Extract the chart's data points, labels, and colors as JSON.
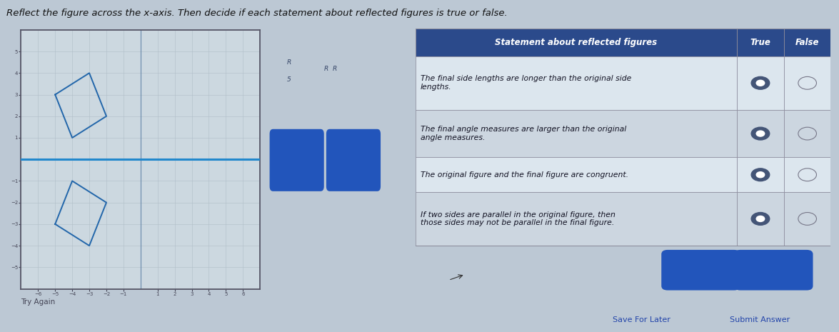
{
  "bg_color": "#bcc8d4",
  "title": "Reflect the figure across the x-axis. Then decide if each statement about reflected figures is true or false.",
  "title_fontsize": 9.5,
  "graph_bg": "#ccd8e0",
  "graph_border_color": "#555566",
  "xaxis_line_color": "#2288cc",
  "grid_color": "#b0bec8",
  "quad_original": [
    [
      -5,
      3
    ],
    [
      -3,
      4
    ],
    [
      -2,
      2
    ],
    [
      -4,
      1
    ]
  ],
  "quad_reflected": [
    [
      -5,
      -3
    ],
    [
      -3,
      -4
    ],
    [
      -2,
      -2
    ],
    [
      -4,
      -1
    ]
  ],
  "quad_color": "#2266aa",
  "quad_linewidth": 1.4,
  "xlim": [
    -7,
    7
  ],
  "ylim": [
    -6,
    6
  ],
  "table_header_bg": "#2b4a8b",
  "table_header_text": "#ffffff",
  "table_header_fontsize": 8.5,
  "table_row_bg1": "#dce6ee",
  "table_row_bg2": "#ccd6e0",
  "table_text_color": "#111122",
  "table_text_fontsize": 7.8,
  "table_border_color": "#888899",
  "statements": [
    "The final side lengths are longer than the original side\nlengths.",
    "The final angle measures are larger than the original\nangle measures.",
    "The original figure and the final figure are congruent.",
    "If two sides are parallel in the original figure, then\nthose sides may not be parallel in the final figure."
  ],
  "radio_filled_color": "#445577",
  "radio_empty_color": "#aaaaaa",
  "button_bg": "#2255bb",
  "button_text_color": "#ffffff",
  "widget_bg": "#dde4ec",
  "widget_border": "#aabbcc",
  "bottom_text": "Save For Later",
  "bottom_text2": "Submit Answer",
  "try_again_text": "Try Again"
}
